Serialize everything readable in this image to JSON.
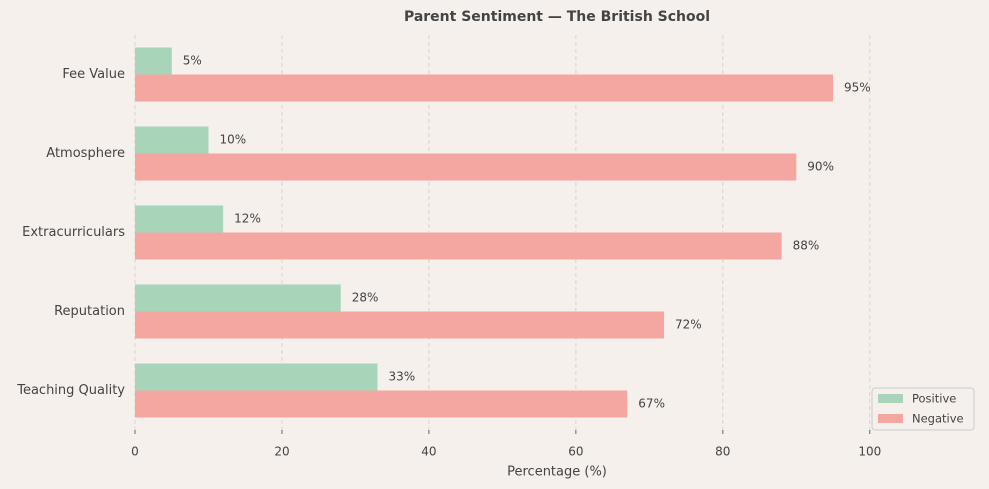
{
  "chart_data": {
    "type": "grouped-hbar",
    "title": "Parent Sentiment — The British School",
    "x_label": "Percentage (%)",
    "categories": [
      "Fee Value",
      "Atmosphere",
      "Extracurriculars",
      "Reputation",
      "Teaching Quality"
    ],
    "series": [
      {
        "name": "Positive",
        "color": "#a8d5ba",
        "values": [
          5,
          10,
          12,
          28,
          33
        ],
        "value_labels": [
          "5%",
          "10%",
          "12%",
          "28%",
          "33%"
        ]
      },
      {
        "name": "Negative",
        "color": "#f4a6a0",
        "values": [
          95,
          90,
          88,
          72,
          67
        ],
        "value_labels": [
          "95%",
          "90%",
          "88%",
          "72%",
          "67%"
        ]
      }
    ],
    "xlim": [
      0,
      115
    ],
    "xticks": [
      0,
      20,
      40,
      60,
      80,
      100
    ],
    "grid": true,
    "legend": "lower right"
  }
}
